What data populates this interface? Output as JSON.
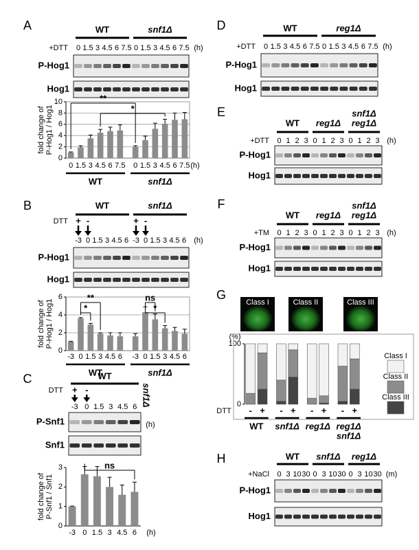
{
  "panels": [
    {
      "label": "A",
      "groups": [
        "WT",
        "snf1Δ"
      ],
      "treatment": "+DTT",
      "lanes": [
        "0",
        "1.5",
        "3",
        "4.5",
        "6",
        "7.5"
      ],
      "unit": "(h)",
      "blots": [
        "P-Hog1",
        "Hog1"
      ]
    },
    {
      "label": "B",
      "groups": [
        "WT",
        "snf1Δ"
      ],
      "treatment": "DTT",
      "marks": [
        "+",
        "-"
      ],
      "lanes": [
        "-3",
        "0",
        "1.5",
        "3",
        "4.5",
        "6"
      ],
      "unit": "(h)",
      "blots": [
        "P-Hog1",
        "Hog1"
      ]
    },
    {
      "label": "C",
      "groups": [
        "WT"
      ],
      "side_label": "snf1Δ",
      "treatment": "DTT",
      "marks": [
        "+",
        "-"
      ],
      "lanes": [
        "-3",
        "0",
        "1.5",
        "3",
        "4.5",
        "6"
      ],
      "unit": "(h)",
      "blots": [
        "P-Snf1",
        "Snf1"
      ]
    },
    {
      "label": "D",
      "groups": [
        "WT",
        "reg1Δ"
      ],
      "treatment": "+DTT",
      "lanes": [
        "0",
        "1.5",
        "3",
        "4.5",
        "6",
        "7.5"
      ],
      "unit": "(h)",
      "blots": [
        "P-Hog1",
        "Hog1"
      ]
    },
    {
      "label": "E",
      "groups": [
        "WT",
        "reg1Δ",
        [
          "snf1Δ",
          "reg1Δ"
        ]
      ],
      "treatment": "+DTT",
      "lanes": [
        "0",
        "1",
        "2",
        "3"
      ],
      "unit": "(h)",
      "blots": [
        "P-Hog1",
        "Hog1"
      ]
    },
    {
      "label": "F",
      "groups": [
        "WT",
        "reg1Δ",
        [
          "snf1Δ",
          "reg1Δ"
        ]
      ],
      "treatment": "+TM",
      "lanes": [
        "0",
        "1",
        "2",
        "3"
      ],
      "unit": "(h)",
      "blots": [
        "P-Hog1",
        "Hog1"
      ]
    },
    {
      "label": "G",
      "images": [
        "Class I",
        "Class II",
        "Class III"
      ]
    },
    {
      "label": "H",
      "groups": [
        "WT",
        "snf1Δ",
        "reg1Δ"
      ],
      "treatment": "+NaCl",
      "lanes": [
        "0",
        "3",
        "10",
        "30"
      ],
      "unit": "(m)",
      "blots": [
        "P-Hog1",
        "Hog1"
      ]
    }
  ],
  "chart_data": [
    {
      "type": "bar",
      "y_label": [
        "fold change of",
        "P-Hog1 / Hog1"
      ],
      "categories": [
        "0",
        "1.5",
        "3",
        "4.5",
        "6",
        "7.5",
        "0",
        "1.5",
        "3",
        "4.5",
        "6",
        "7.5"
      ],
      "values": [
        1.0,
        1.9,
        3.5,
        4.5,
        4.8,
        4.9,
        2.0,
        3.2,
        5.2,
        6.1,
        6.8,
        6.9
      ],
      "errors": [
        0.1,
        0.3,
        0.6,
        0.6,
        0.7,
        1.0,
        0.2,
        0.7,
        1.0,
        0.8,
        1.2,
        1.2
      ],
      "color": "#8c8c8c",
      "ylim": [
        0,
        10
      ],
      "yticks": [
        0,
        2,
        4,
        6,
        8,
        10
      ],
      "grid": true,
      "x_unit": "(h)",
      "group_labels": [
        "WT",
        "snf1Δ"
      ],
      "annotations": [
        "**",
        "*"
      ]
    },
    {
      "type": "bar",
      "y_label": [
        "fold change of",
        "P-Hog1 / Hog1"
      ],
      "categories": [
        "-3",
        "0",
        "1.5",
        "3",
        "4.5",
        "6",
        "-3",
        "0",
        "1.5",
        "3",
        "4.5",
        "6"
      ],
      "values": [
        1.0,
        3.6,
        2.9,
        1.9,
        1.7,
        1.6,
        1.6,
        4.3,
        3.5,
        2.5,
        2.2,
        1.9
      ],
      "errors": [
        0.05,
        0.1,
        0.15,
        0.1,
        0.3,
        0.4,
        0.3,
        0.6,
        0.6,
        0.3,
        0.4,
        0.5
      ],
      "color": "#8c8c8c",
      "ylim": [
        0,
        6
      ],
      "yticks": [
        0,
        2,
        4,
        6
      ],
      "grid": true,
      "group_labels": [
        "WT",
        "snf1Δ"
      ],
      "annotations": [
        "**",
        "*",
        "ns",
        "*"
      ]
    },
    {
      "type": "bar",
      "y_label": [
        "fold change of",
        "P-Snf1 / Snf1"
      ],
      "categories": [
        "-3",
        "0",
        "1.5",
        "3",
        "4.5",
        "6"
      ],
      "values": [
        1.0,
        2.65,
        2.55,
        2.0,
        1.6,
        1.75
      ],
      "errors": [
        0.02,
        0.4,
        0.5,
        0.5,
        0.5,
        0.5
      ],
      "color": "#8c8c8c",
      "ylim": [
        0,
        3
      ],
      "yticks": [
        0,
        1,
        2,
        3
      ],
      "grid": false,
      "x_unit": "(h)",
      "annotations": [
        "ns"
      ]
    },
    {
      "type": "stacked_bar",
      "y_label": [
        "(%)"
      ],
      "x_label": "DTT",
      "categories": [
        "-",
        "+",
        "-",
        "+",
        "-",
        "+",
        "-",
        "+"
      ],
      "series": [
        {
          "name": "Class III",
          "color": "#444444",
          "values": [
            0,
            25,
            5,
            45,
            0,
            2,
            5,
            25
          ]
        },
        {
          "name": "Class II",
          "color": "#8c8c8c",
          "values": [
            18,
            60,
            35,
            45,
            10,
            12,
            58,
            50
          ]
        },
        {
          "name": "Class I",
          "color": "#f2f2f2",
          "values": [
            82,
            15,
            60,
            10,
            90,
            86,
            37,
            25
          ]
        }
      ],
      "ylim": [
        0,
        100
      ],
      "yticks": [
        0,
        100
      ],
      "group_labels": [
        "WT",
        "snf1Δ",
        "reg1Δ",
        [
          "reg1Δ",
          "snf1Δ"
        ]
      ]
    }
  ]
}
